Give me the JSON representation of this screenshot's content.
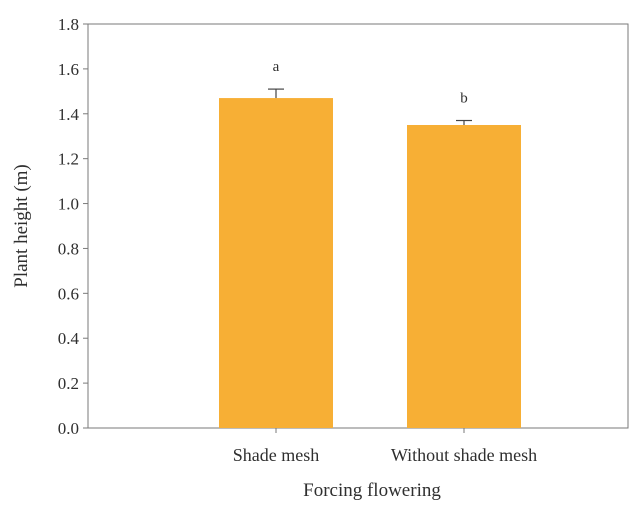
{
  "chart_data": {
    "type": "bar",
    "title": "",
    "xlabel": "Forcing flowering",
    "ylabel": "Plant height (m)",
    "categories": [
      "Shade mesh",
      "Without shade mesh"
    ],
    "series": [
      {
        "values": [
          1.47,
          1.35
        ],
        "error": [
          0.04,
          0.02
        ],
        "significance_labels": [
          "a",
          "b"
        ]
      }
    ],
    "ylim": [
      0.0,
      1.8
    ],
    "yticks": [
      "0.0",
      "0.2",
      "0.4",
      "0.6",
      "0.8",
      "1.0",
      "1.2",
      "1.4",
      "1.6",
      "1.8"
    ],
    "grid": false,
    "legend": "none",
    "colors": {
      "bar": "#F7AF35",
      "axis": "#7a7a7a",
      "text": "#2f2f2f"
    }
  }
}
